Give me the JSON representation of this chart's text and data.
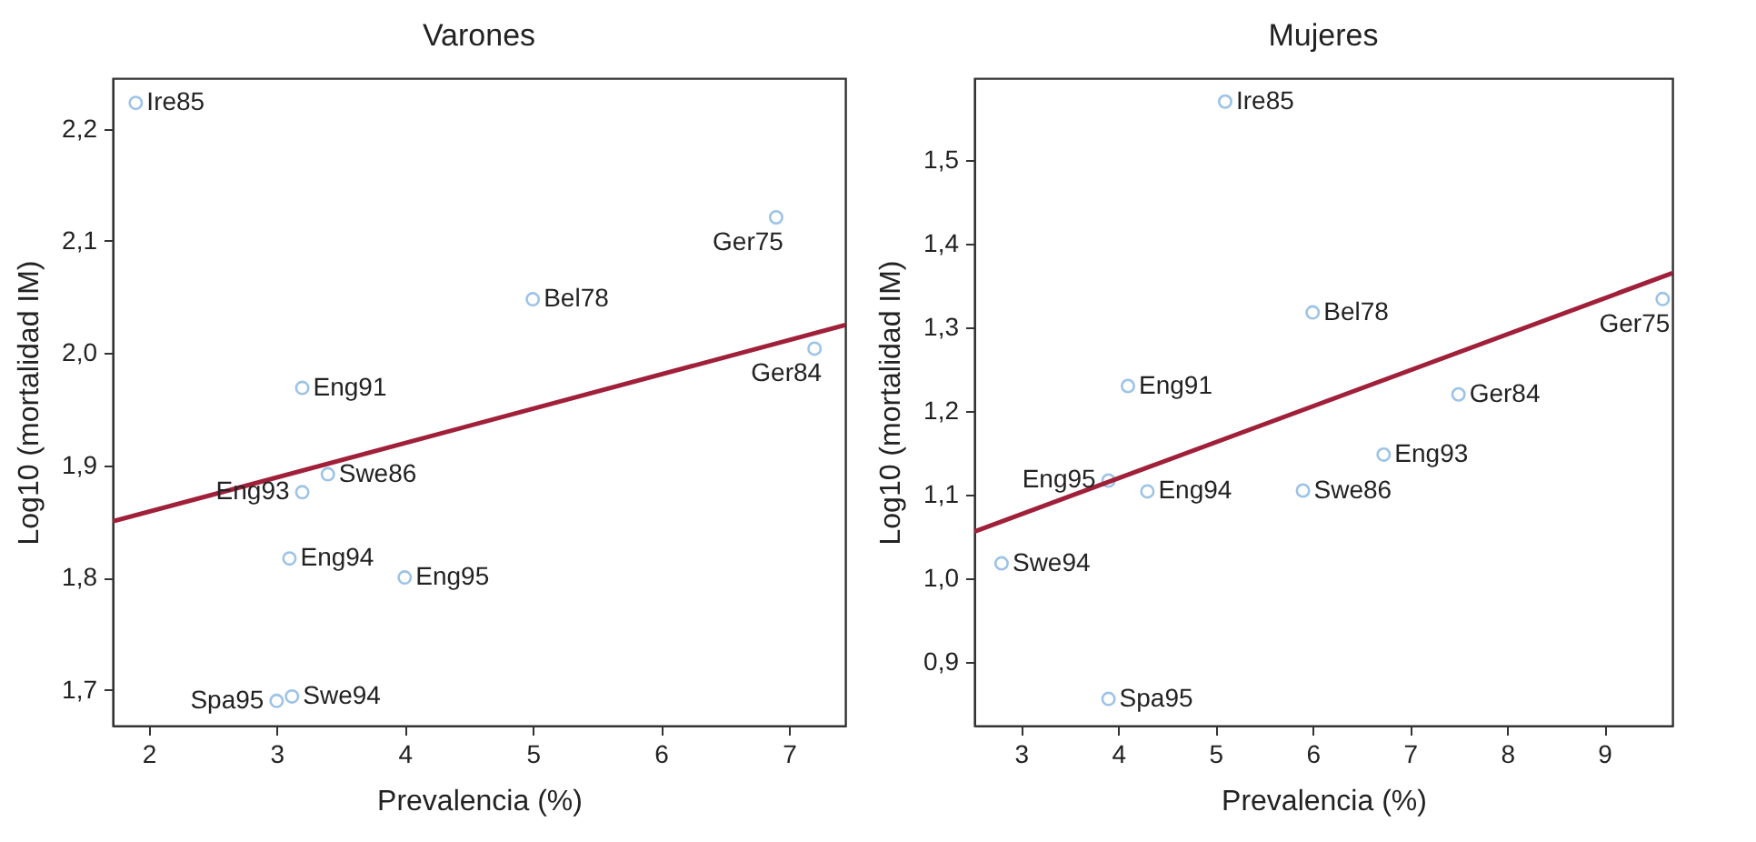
{
  "chart_data": [
    {
      "type": "scatter",
      "title": "Varones",
      "xlabel": "Prevalencia (%)",
      "ylabel": "Log10 (mortalidad IM)",
      "xlim": [
        1.72,
        7.44
      ],
      "ylim": [
        1.668,
        2.245
      ],
      "xticks": [
        2,
        3,
        4,
        5,
        6,
        7
      ],
      "yticks": [
        {
          "value": 1.7,
          "label": "1,7"
        },
        {
          "value": 1.8,
          "label": "1,8"
        },
        {
          "value": 1.9,
          "label": "1,9"
        },
        {
          "value": 2.0,
          "label": "2,0"
        },
        {
          "value": 2.1,
          "label": "2,1"
        },
        {
          "value": 2.2,
          "label": "2,2"
        }
      ],
      "grid": false,
      "series": [
        {
          "marker": "circle",
          "color": "#9dc3e6",
          "x": [
            1.9,
            6.9,
            5.0,
            7.2,
            3.2,
            3.4,
            3.2,
            3.1,
            4.0,
            3.0,
            3.12
          ],
          "values": [
            2.223,
            2.121,
            2.048,
            2.004,
            1.969,
            1.892,
            1.876,
            1.817,
            1.8,
            1.69,
            1.694
          ]
        },
        {
          "type": "line",
          "color": "#a0203a",
          "x": [
            1.72,
            7.44
          ],
          "values": [
            1.85,
            2.025
          ]
        }
      ],
      "annotations": [
        {
          "text": "Ire85",
          "x": 1.9,
          "y": 2.223
        },
        {
          "text": "Ger75",
          "x": 6.9,
          "y": 2.121
        },
        {
          "text": "Bel78",
          "x": 5.0,
          "y": 2.048
        },
        {
          "text": "Ger84",
          "x": 7.2,
          "y": 2.004
        },
        {
          "text": "Eng91",
          "x": 3.2,
          "y": 1.969
        },
        {
          "text": "Swe86",
          "x": 3.4,
          "y": 1.892
        },
        {
          "text": "Eng93",
          "x": 3.2,
          "y": 1.876
        },
        {
          "text": "Eng94",
          "x": 3.1,
          "y": 1.817
        },
        {
          "text": "Eng95",
          "x": 4.0,
          "y": 1.8
        },
        {
          "text": "Spa95",
          "x": 3.0,
          "y": 1.69
        },
        {
          "text": "Swe94",
          "x": 3.12,
          "y": 1.694
        }
      ]
    },
    {
      "type": "scatter",
      "title": "Mujeres",
      "xlabel": "Prevalencia (%)",
      "ylabel": "Log10 (mortalidad IM)",
      "xlim": [
        2.52,
        9.7
      ],
      "ylim": [
        0.824,
        1.598
      ],
      "xticks": [
        3,
        4,
        5,
        6,
        7,
        8,
        9
      ],
      "yticks": [
        {
          "value": 0.9,
          "label": "0,9"
        },
        {
          "value": 1.0,
          "label": "1,0"
        },
        {
          "value": 1.1,
          "label": "1,1"
        },
        {
          "value": 1.2,
          "label": "1,2"
        },
        {
          "value": 1.3,
          "label": "1,3"
        },
        {
          "value": 1.4,
          "label": "1,4"
        },
        {
          "value": 1.5,
          "label": "1,5"
        }
      ],
      "grid": false,
      "series": [
        {
          "marker": "circle",
          "color": "#9dc3e6",
          "x": [
            5.1,
            6.0,
            9.6,
            4.1,
            7.5,
            6.73,
            3.9,
            4.3,
            5.9,
            2.8,
            3.9
          ],
          "values": [
            1.57,
            1.318,
            1.334,
            1.23,
            1.22,
            1.148,
            1.117,
            1.104,
            1.105,
            1.018,
            0.856
          ]
        },
        {
          "type": "line",
          "color": "#a0203a",
          "x": [
            2.52,
            9.7
          ],
          "values": [
            1.056,
            1.365
          ]
        }
      ],
      "annotations": [
        {
          "text": "Ire85",
          "x": 5.1,
          "y": 1.57
        },
        {
          "text": "Bel78",
          "x": 6.0,
          "y": 1.318
        },
        {
          "text": "Ger75",
          "x": 9.6,
          "y": 1.334
        },
        {
          "text": "Eng91",
          "x": 4.1,
          "y": 1.23
        },
        {
          "text": "Ger84",
          "x": 7.5,
          "y": 1.22
        },
        {
          "text": "Eng93",
          "x": 6.73,
          "y": 1.148
        },
        {
          "text": "Eng95",
          "x": 3.9,
          "y": 1.117
        },
        {
          "text": "Eng94",
          "x": 4.3,
          "y": 1.104
        },
        {
          "text": "Swe86",
          "x": 5.9,
          "y": 1.105
        },
        {
          "text": "Swe94",
          "x": 2.8,
          "y": 1.018
        },
        {
          "text": "Spa95",
          "x": 3.9,
          "y": 0.856
        }
      ]
    }
  ]
}
